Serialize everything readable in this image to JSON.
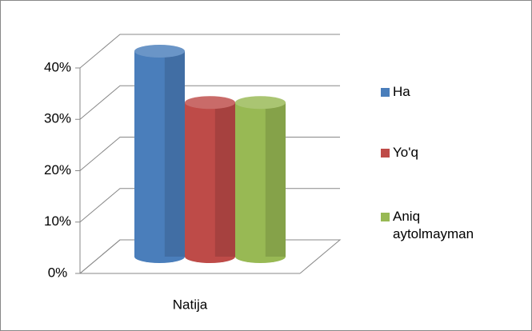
{
  "chart_data": {
    "type": "bar3d",
    "categories": [
      "Natija"
    ],
    "series": [
      {
        "name": "Ha",
        "color": "#4a7ebb",
        "values": [
          40
        ]
      },
      {
        "name": "Yo'q",
        "color": "#be4b48",
        "values": [
          30
        ]
      },
      {
        "name": "Aniq aytolmayman",
        "color": "#98b954",
        "values": [
          30
        ]
      }
    ],
    "ylim": [
      0,
      40
    ],
    "yticks": [
      {
        "value": 0,
        "label": "0%"
      },
      {
        "value": 10,
        "label": "10%"
      },
      {
        "value": 20,
        "label": "20%"
      },
      {
        "value": 30,
        "label": "30%"
      },
      {
        "value": 40,
        "label": "40%"
      }
    ],
    "grid": true,
    "legend": "right"
  }
}
